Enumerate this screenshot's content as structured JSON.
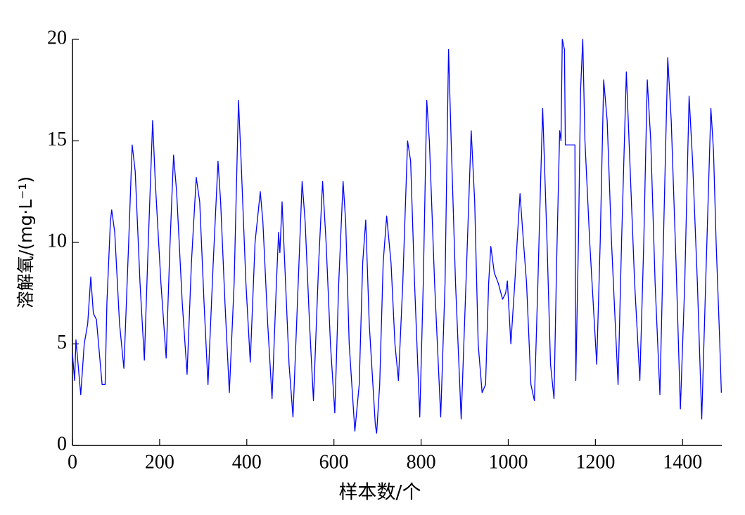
{
  "chart_data": {
    "type": "line",
    "xlabel": "样本数/个",
    "ylabel": "溶解氧/(mg·L⁻¹)",
    "xlim": [
      0,
      1490
    ],
    "ylim": [
      0,
      20
    ],
    "xticks": [
      0,
      200,
      400,
      600,
      800,
      1000,
      1200,
      1400
    ],
    "yticks": [
      0,
      5,
      10,
      15,
      20
    ],
    "series": [
      {
        "color": "#0000ff",
        "x": [
          0,
          5,
          8,
          19,
          27,
          35,
          42,
          48,
          55,
          68,
          75,
          79,
          87,
          90,
          97,
          108,
          118,
          129,
          137,
          144,
          155,
          165,
          174,
          184,
          190,
          203,
          215,
          224,
          232,
          239,
          252,
          263,
          273,
          284,
          292,
          302,
          311,
          323,
          334,
          340,
          350,
          360,
          371,
          381,
          387,
          398,
          408,
          419,
          431,
          437,
          448,
          458,
          468,
          473,
          476,
          481,
          487,
          497,
          506,
          518,
          527,
          534,
          544,
          553,
          565,
          574,
          582,
          592,
          602,
          611,
          621,
          627,
          635,
          648,
          658,
          666,
          673,
          681,
          695,
          698,
          705,
          713,
          721,
          731,
          740,
          748,
          758,
          769,
          776,
          785,
          797,
          805,
          813,
          819,
          831,
          845,
          855,
          863,
          869,
          879,
          892,
          903,
          915,
          923,
          931,
          940,
          948,
          955,
          960,
          968,
          977,
          987,
          994,
          998,
          1006,
          1015,
          1023,
          1027,
          1035,
          1042,
          1052,
          1060,
          1068,
          1073,
          1079,
          1089,
          1097,
          1105,
          1111,
          1118,
          1121,
          1124,
          1129,
          1131,
          1153,
          1155,
          1161,
          1166,
          1171,
          1176,
          1187,
          1203,
          1211,
          1219,
          1227,
          1237,
          1252,
          1260,
          1271,
          1279,
          1290,
          1302,
          1311,
          1319,
          1327,
          1337,
          1348,
          1356,
          1366,
          1374,
          1385,
          1395,
          1405,
          1415,
          1423,
          1434,
          1444,
          1453,
          1465,
          1471,
          1477,
          1485,
          1489
        ],
        "values": [
          4.5,
          3.2,
          5.2,
          2.5,
          5,
          6,
          8.3,
          6.5,
          6.2,
          3,
          3,
          7,
          11,
          11.6,
          10.5,
          6,
          3.8,
          10,
          14.8,
          13.5,
          8,
          4.2,
          10,
          16,
          13,
          8,
          4.3,
          10,
          14.3,
          12.5,
          7,
          3.5,
          9,
          13.2,
          12,
          7,
          3,
          9,
          14,
          12,
          7,
          2.6,
          8,
          17,
          14,
          8,
          4.1,
          10,
          12.5,
          11,
          6,
          2.3,
          8,
          10.5,
          9.5,
          12,
          9,
          4,
          1.4,
          8,
          13,
          11,
          6,
          2.2,
          9,
          13,
          10,
          5,
          1.6,
          8,
          13,
          11,
          5,
          0.7,
          3,
          9,
          11.1,
          6,
          1,
          0.6,
          3,
          9,
          11.3,
          9,
          5,
          3.2,
          8,
          15,
          14,
          8,
          1.4,
          8,
          17,
          15,
          8,
          1.4,
          8,
          19.5,
          15,
          8,
          1.3,
          8,
          15.5,
          12,
          5,
          2.6,
          3,
          8,
          9.8,
          8.5,
          8,
          7.2,
          7.5,
          8.1,
          5,
          8,
          11,
          12.4,
          10,
          8,
          3,
          2.2,
          8,
          12,
          16.6,
          10,
          4,
          2.3,
          9,
          15.5,
          15,
          20,
          19.5,
          14.8,
          14.8,
          3.2,
          10,
          17.5,
          20,
          15,
          10,
          4,
          10,
          18,
          16,
          10,
          3,
          10,
          18.4,
          14,
          8,
          3.2,
          10,
          18,
          15,
          8,
          2.5,
          10,
          19.1,
          16,
          9,
          1.8,
          8,
          17.2,
          14,
          8,
          1.3,
          8,
          16.6,
          14.5,
          10,
          5.3,
          2.6
        ]
      }
    ]
  }
}
